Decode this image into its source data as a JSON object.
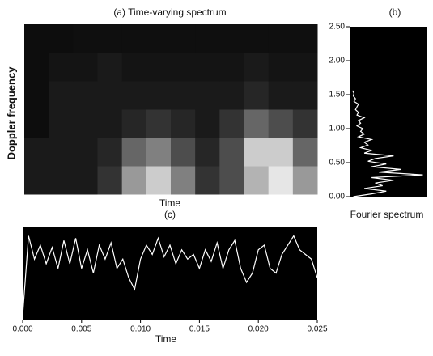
{
  "chart_data": [
    {
      "type": "heatmap",
      "title": "(a) Time-varying spectrum",
      "xlabel": "Time",
      "ylabel": "Doppler frequency",
      "z": [
        [
          0.1,
          0.1,
          0.1,
          0.2,
          0.6,
          0.8,
          0.5,
          0.2,
          0.3,
          0.7,
          0.9,
          0.6
        ],
        [
          0.1,
          0.1,
          0.1,
          0.15,
          0.4,
          0.5,
          0.3,
          0.15,
          0.3,
          0.8,
          0.8,
          0.4
        ],
        [
          0.05,
          0.1,
          0.1,
          0.1,
          0.15,
          0.2,
          0.15,
          0.1,
          0.2,
          0.4,
          0.3,
          0.2
        ],
        [
          0.05,
          0.1,
          0.1,
          0.1,
          0.1,
          0.1,
          0.1,
          0.1,
          0.1,
          0.15,
          0.1,
          0.1
        ],
        [
          0.05,
          0.08,
          0.08,
          0.1,
          0.08,
          0.08,
          0.08,
          0.08,
          0.08,
          0.1,
          0.08,
          0.08
        ],
        [
          0.05,
          0.05,
          0.06,
          0.06,
          0.06,
          0.06,
          0.06,
          0.06,
          0.06,
          0.06,
          0.06,
          0.06
        ]
      ]
    },
    {
      "type": "hline",
      "title": "(b)",
      "xlabel": "Fourier spectrum",
      "color": "#ffffff",
      "y": [
        0,
        0.04,
        0.08,
        0.12,
        0.16,
        0.2,
        0.24,
        0.28,
        0.32,
        0.36,
        0.4,
        0.44,
        0.48,
        0.52,
        0.56,
        0.6,
        0.64,
        0.68,
        0.72,
        0.76,
        0.8,
        0.84,
        0.88,
        0.92,
        0.96,
        1.0,
        1.04,
        1.08,
        1.12,
        1.16,
        1.2,
        1.24,
        1.28,
        1.32,
        1.36,
        1.4,
        1.44,
        1.48,
        1.52,
        1.56
      ],
      "values": [
        0.05,
        0.3,
        0.5,
        0.2,
        0.45,
        0.35,
        0.6,
        0.3,
        1.0,
        0.4,
        0.7,
        0.3,
        0.5,
        0.25,
        0.35,
        0.6,
        0.2,
        0.3,
        0.15,
        0.25,
        0.2,
        0.3,
        0.12,
        0.2,
        0.15,
        0.18,
        0.1,
        0.15,
        0.12,
        0.2,
        0.1,
        0.12,
        0.08,
        0.1,
        0.12,
        0.06,
        0.08,
        0.05,
        0.06,
        0.04
      ],
      "xlim": [
        0,
        1.05
      ],
      "ylim": [
        0,
        2.5
      ],
      "yticks": [
        {
          "value": 0,
          "label": "0.00"
        },
        {
          "value": 0.5,
          "label": "0.50"
        },
        {
          "value": 1,
          "label": "1.00"
        },
        {
          "value": 1.5,
          "label": "1.50"
        },
        {
          "value": 2,
          "label": "2.00"
        },
        {
          "value": 2.5,
          "label": "2.50"
        }
      ]
    },
    {
      "type": "line",
      "title": "(c)",
      "xlabel": "Time",
      "color": "#ffffff",
      "x": [
        0,
        0.0005,
        0.001,
        0.0015,
        0.002,
        0.0025,
        0.003,
        0.0035,
        0.004,
        0.0045,
        0.005,
        0.0055,
        0.006,
        0.0065,
        0.007,
        0.0075,
        0.008,
        0.0085,
        0.009,
        0.0095,
        0.01,
        0.0105,
        0.011,
        0.0115,
        0.012,
        0.0125,
        0.013,
        0.0135,
        0.014,
        0.0145,
        0.015,
        0.0155,
        0.016,
        0.0165,
        0.017,
        0.0175,
        0.018,
        0.0185,
        0.019,
        0.0195,
        0.02,
        0.0205,
        0.021,
        0.0215,
        0.022,
        0.0225,
        0.023,
        0.0235,
        0.024,
        0.0245,
        0.025
      ],
      "values": [
        -0.9,
        0.8,
        0.3,
        0.6,
        0.2,
        0.55,
        0.1,
        0.7,
        0.2,
        0.75,
        0.1,
        0.5,
        0.0,
        0.6,
        0.3,
        0.65,
        0.1,
        0.3,
        -0.1,
        -0.35,
        0.3,
        0.6,
        0.4,
        0.75,
        0.35,
        0.6,
        0.2,
        0.5,
        0.3,
        0.4,
        0.1,
        0.5,
        0.25,
        0.65,
        0.1,
        0.5,
        0.7,
        0.1,
        -0.2,
        0.0,
        0.5,
        0.6,
        0.1,
        0.0,
        0.4,
        0.6,
        0.8,
        0.5,
        0.4,
        0.3,
        -0.1
      ],
      "xlim": [
        0,
        0.025
      ],
      "ylim": [
        -1,
        1
      ],
      "xticks": [
        {
          "value": 0,
          "label": "0.000"
        },
        {
          "value": 0.005,
          "label": "0.005"
        },
        {
          "value": 0.01,
          "label": "0.010"
        },
        {
          "value": 0.015,
          "label": "0.015"
        },
        {
          "value": 0.02,
          "label": "0.020"
        },
        {
          "value": 0.025,
          "label": "0.025"
        }
      ]
    }
  ]
}
